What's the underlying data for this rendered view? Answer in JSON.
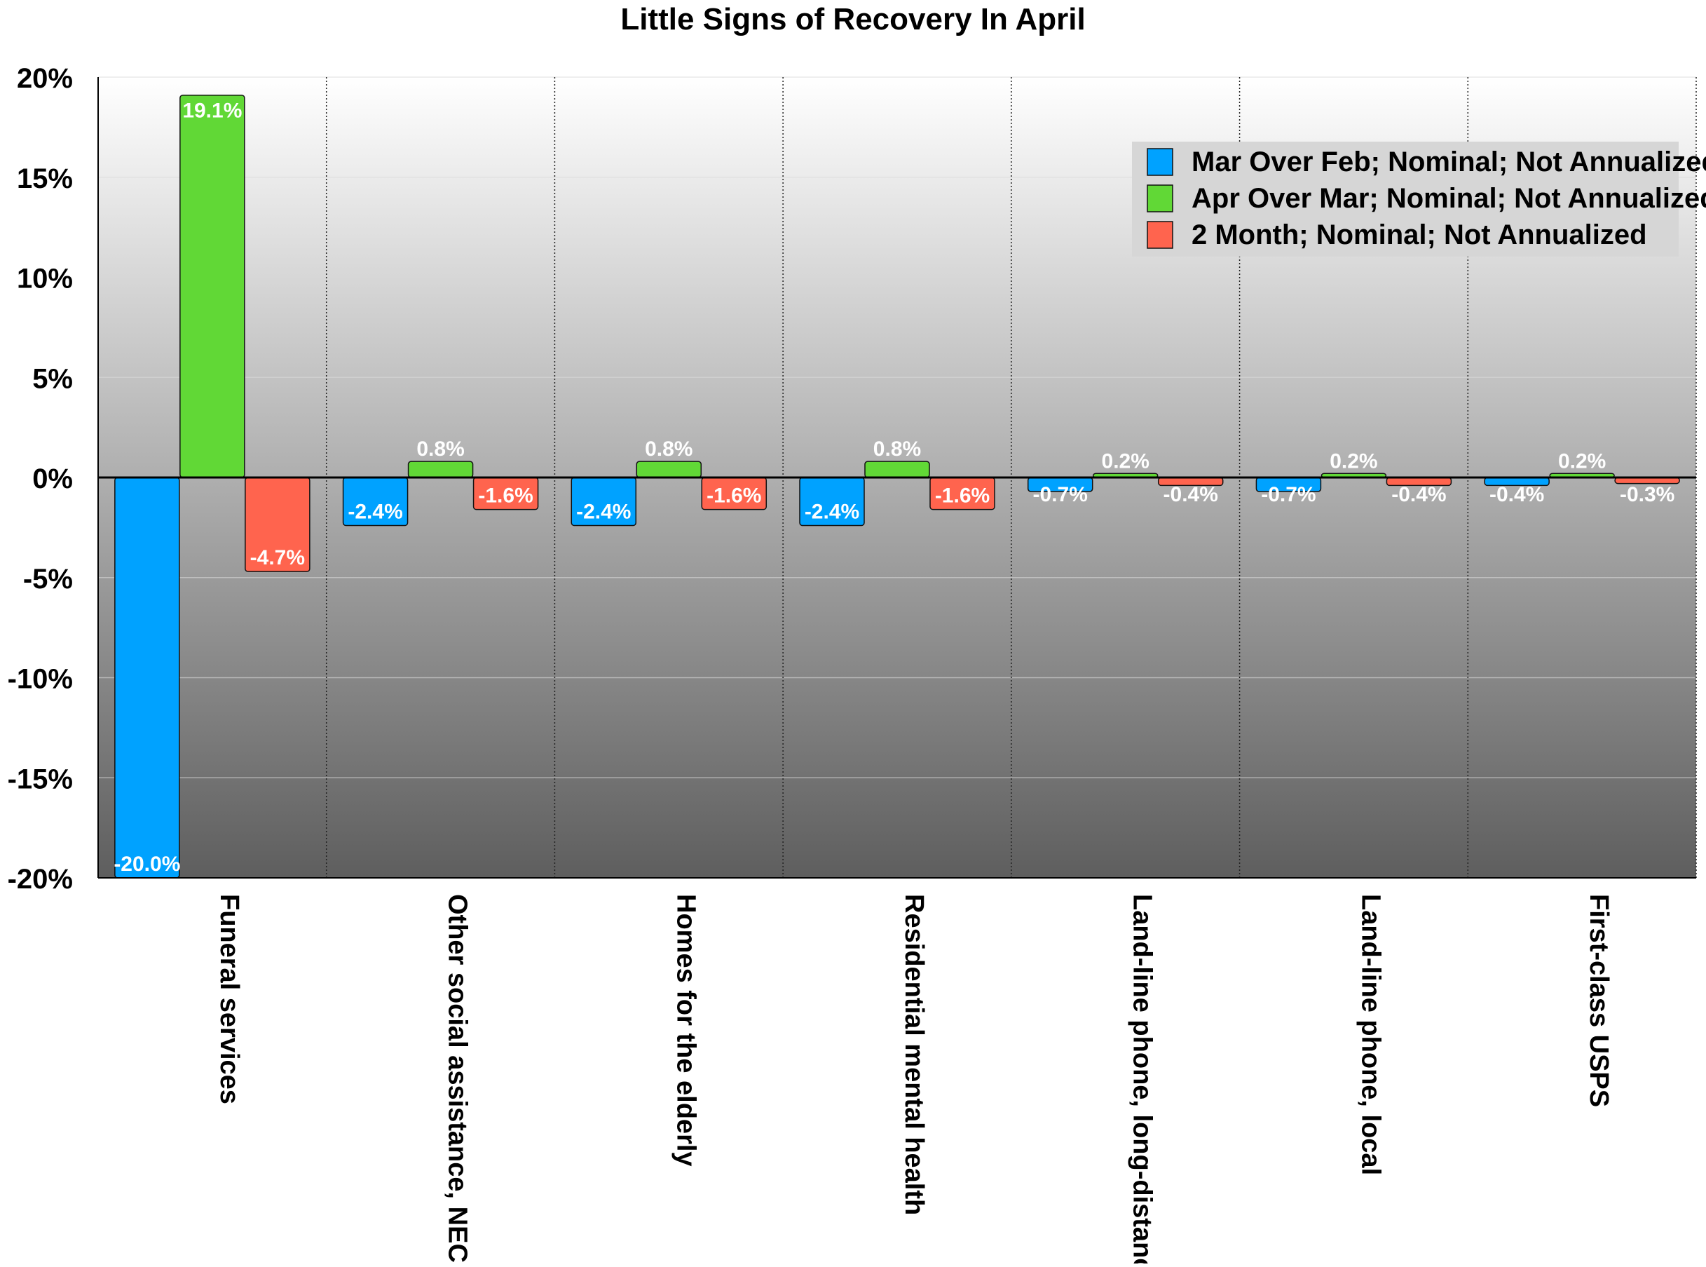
{
  "chart_data": {
    "type": "bar",
    "title": "Little Signs of Recovery In April",
    "xlabel": "",
    "ylabel": "",
    "ylim": [
      -20,
      20
    ],
    "yticks": [
      20,
      15,
      10,
      5,
      0,
      -5,
      -10,
      -15,
      -20
    ],
    "ytick_labels": [
      "20%",
      "15%",
      "10%",
      "5%",
      "0%",
      "-5%",
      "-10%",
      "-15%",
      "-20%"
    ],
    "categories": [
      "Funeral services",
      "Other social assistance, NEC",
      "Homes for the elderly",
      "Residential mental health",
      "Land-line phone, long-distance",
      "Land-line phone, local",
      "First-class USPS"
    ],
    "series": [
      {
        "name": "Mar Over Feb; Nominal; Not Annualized",
        "color": "#00a2ff",
        "values": [
          -20.0,
          -2.4,
          -2.4,
          -2.4,
          -0.7,
          -0.7,
          -0.4
        ],
        "labels": [
          "-20.0%",
          "-2.4%",
          "-2.4%",
          "-2.4%",
          "-0.7%",
          "-0.7%",
          "-0.4%"
        ]
      },
      {
        "name": "Apr Over Mar; Nominal; Not Annualized",
        "color": "#61d836",
        "values": [
          19.1,
          0.8,
          0.8,
          0.8,
          0.2,
          0.2,
          0.2
        ],
        "labels": [
          "19.1%",
          "0.8%",
          "0.8%",
          "0.8%",
          "0.2%",
          "0.2%",
          "0.2%"
        ]
      },
      {
        "name": "2 Month; Nominal; Not Annualized",
        "color": "#ff644e",
        "values": [
          -4.7,
          -1.6,
          -1.6,
          -1.6,
          -0.4,
          -0.4,
          -0.3
        ],
        "labels": [
          "-4.7%",
          "-1.6%",
          "-1.6%",
          "-1.6%",
          "-0.4%",
          "-0.4%",
          "-0.3%"
        ]
      }
    ],
    "grid": true,
    "legend_position": "top-right"
  }
}
